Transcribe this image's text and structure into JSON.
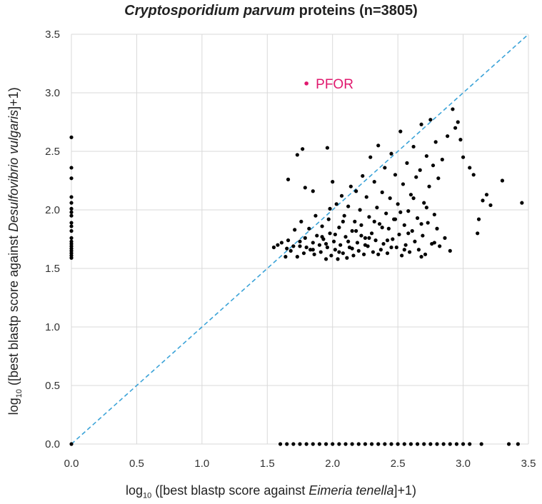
{
  "chart_data": {
    "type": "scatter",
    "title_italic": "Cryptosporidium parvum",
    "title_rest": " proteins (n=3805)",
    "xlabel_pre": "log",
    "xlabel_sub": "10",
    "xlabel_mid": " ([best blastp score against ",
    "xlabel_italic": "Eimeria tenella",
    "xlabel_post": "]+1)",
    "ylabel_pre": "log",
    "ylabel_sub": "10",
    "ylabel_mid": " ([best blastp score against ",
    "ylabel_italic": "Desulfovibrio vulgaris",
    "ylabel_post": "]+1)",
    "xlim": [
      0,
      3.5
    ],
    "ylim": [
      0,
      3.5
    ],
    "x_ticks": [
      "0.0",
      "0.5",
      "1.0",
      "1.5",
      "2.0",
      "2.5",
      "3.0",
      "3.5"
    ],
    "y_ticks": [
      "0.0",
      "0.5",
      "1.0",
      "1.5",
      "2.0",
      "2.5",
      "3.0",
      "3.5"
    ],
    "grid": true,
    "reference_line": {
      "name": "y = x",
      "x": [
        0,
        3.5
      ],
      "y": [
        0,
        3.5
      ],
      "color": "#3ba3d8",
      "style": "dashed"
    },
    "annotation": {
      "label": "PFOR",
      "x": 1.8,
      "y": 3.08,
      "color": "#e0186e"
    },
    "series": [
      {
        "name": "proteins",
        "color": "#000000",
        "points": [
          [
            0,
            0
          ],
          [
            0,
            2.62
          ],
          [
            0,
            2.36
          ],
          [
            0,
            2.27
          ],
          [
            0,
            2.11
          ],
          [
            0,
            2.06
          ],
          [
            0,
            2.01
          ],
          [
            0,
            1.98
          ],
          [
            0,
            1.95
          ],
          [
            0,
            1.89
          ],
          [
            0,
            1.86
          ],
          [
            0,
            1.82
          ],
          [
            0,
            1.76
          ],
          [
            0,
            1.73
          ],
          [
            0,
            1.71
          ],
          [
            0,
            1.69
          ],
          [
            0,
            1.67
          ],
          [
            0,
            1.65
          ],
          [
            0,
            1.63
          ],
          [
            0,
            1.61
          ],
          [
            0,
            1.59
          ],
          [
            1.73,
            2.47
          ],
          [
            1.77,
            2.52
          ],
          [
            1.66,
            2.26
          ],
          [
            1.96,
            2.53
          ],
          [
            1.79,
            2.19
          ],
          [
            1.85,
            2.16
          ],
          [
            1.98,
            2.01
          ],
          [
            1.55,
            1.68
          ],
          [
            1.61,
            1.72
          ],
          [
            1.64,
            1.6
          ],
          [
            1.66,
            1.74
          ],
          [
            1.68,
            1.65
          ],
          [
            1.7,
            1.69
          ],
          [
            1.71,
            1.83
          ],
          [
            1.73,
            1.6
          ],
          [
            1.75,
            1.73
          ],
          [
            1.76,
            1.9
          ],
          [
            1.78,
            1.63
          ],
          [
            1.79,
            1.76
          ],
          [
            1.8,
            1.68
          ],
          [
            1.82,
            1.84
          ],
          [
            1.83,
            1.66
          ],
          [
            1.85,
            1.72
          ],
          [
            1.86,
            1.62
          ],
          [
            1.87,
            1.95
          ],
          [
            1.88,
            1.78
          ],
          [
            1.9,
            1.7
          ],
          [
            1.91,
            1.64
          ],
          [
            1.92,
            1.86
          ],
          [
            1.93,
            1.75
          ],
          [
            1.95,
            1.58
          ],
          [
            1.96,
            1.68
          ],
          [
            1.97,
            1.92
          ],
          [
            1.98,
            1.8
          ],
          [
            1.99,
            1.61
          ],
          [
            2.0,
            2.24
          ],
          [
            2.01,
            1.73
          ],
          [
            2.02,
            1.66
          ],
          [
            2.03,
            2.05
          ],
          [
            2.04,
            1.58
          ],
          [
            2.05,
            1.85
          ],
          [
            2.06,
            1.7
          ],
          [
            2.07,
            2.12
          ],
          [
            2.08,
            1.63
          ],
          [
            2.09,
            1.95
          ],
          [
            2.1,
            1.77
          ],
          [
            2.11,
            1.59
          ],
          [
            2.12,
            2.03
          ],
          [
            2.13,
            1.68
          ],
          [
            2.14,
            2.2
          ],
          [
            2.15,
            1.82
          ],
          [
            2.16,
            1.61
          ],
          [
            2.17,
            1.9
          ],
          [
            2.18,
            2.16
          ],
          [
            2.19,
            1.72
          ],
          [
            2.2,
            1.65
          ],
          [
            2.21,
            2.0
          ],
          [
            2.22,
            1.87
          ],
          [
            2.23,
            2.29
          ],
          [
            2.24,
            1.62
          ],
          [
            2.25,
            1.76
          ],
          [
            2.26,
            2.11
          ],
          [
            2.27,
            1.69
          ],
          [
            2.28,
            1.94
          ],
          [
            2.29,
            2.45
          ],
          [
            2.3,
            1.8
          ],
          [
            2.31,
            1.64
          ],
          [
            2.32,
            2.24
          ],
          [
            2.33,
            1.74
          ],
          [
            2.34,
            2.02
          ],
          [
            2.35,
            2.55
          ],
          [
            2.36,
            1.88
          ],
          [
            2.37,
            1.66
          ],
          [
            2.38,
            2.15
          ],
          [
            2.39,
            1.71
          ],
          [
            2.4,
            2.36
          ],
          [
            2.41,
            1.97
          ],
          [
            2.42,
            1.63
          ],
          [
            2.43,
            1.84
          ],
          [
            2.44,
            2.1
          ],
          [
            2.45,
            2.48
          ],
          [
            2.46,
            1.75
          ],
          [
            2.47,
            1.92
          ],
          [
            2.48,
            2.3
          ],
          [
            2.49,
            1.68
          ],
          [
            2.5,
            2.05
          ],
          [
            2.51,
            1.79
          ],
          [
            2.52,
            2.67
          ],
          [
            2.53,
            1.61
          ],
          [
            2.54,
            2.22
          ],
          [
            2.55,
            1.87
          ],
          [
            2.56,
            1.7
          ],
          [
            2.57,
            2.4
          ],
          [
            2.58,
            1.99
          ],
          [
            2.59,
            1.64
          ],
          [
            2.6,
            2.13
          ],
          [
            2.61,
            1.82
          ],
          [
            2.62,
            2.54
          ],
          [
            2.63,
            1.73
          ],
          [
            2.64,
            2.28
          ],
          [
            2.65,
            1.93
          ],
          [
            2.66,
            1.66
          ],
          [
            2.67,
            2.34
          ],
          [
            2.68,
            2.73
          ],
          [
            2.69,
            1.78
          ],
          [
            2.7,
            2.06
          ],
          [
            2.71,
            1.62
          ],
          [
            2.72,
            2.46
          ],
          [
            2.73,
            1.89
          ],
          [
            2.74,
            2.2
          ],
          [
            2.75,
            2.77
          ],
          [
            2.76,
            1.71
          ],
          [
            2.77,
            2.38
          ],
          [
            2.78,
            1.96
          ],
          [
            2.79,
            2.58
          ],
          [
            2.8,
            1.84
          ],
          [
            2.81,
            2.27
          ],
          [
            2.82,
            1.69
          ],
          [
            2.84,
            2.43
          ],
          [
            2.86,
            1.76
          ],
          [
            2.88,
            2.63
          ],
          [
            2.92,
            2.86
          ],
          [
            2.94,
            2.7
          ],
          [
            2.96,
            2.75
          ],
          [
            2.98,
            2.6
          ],
          [
            3.0,
            2.45
          ],
          [
            3.05,
            2.36
          ],
          [
            3.08,
            2.3
          ],
          [
            3.12,
            1.92
          ],
          [
            3.11,
            1.8
          ],
          [
            3.15,
            2.08
          ],
          [
            3.18,
            2.13
          ],
          [
            3.21,
            2.04
          ],
          [
            3.3,
            2.25
          ],
          [
            3.45,
            2.06
          ],
          [
            2.9,
            1.65
          ],
          [
            2.78,
            1.72
          ],
          [
            2.68,
            1.6
          ],
          [
            2.55,
            1.66
          ],
          [
            2.45,
            1.68
          ],
          [
            2.35,
            1.62
          ],
          [
            2.25,
            1.7
          ],
          [
            2.15,
            1.67
          ],
          [
            2.05,
            1.64
          ],
          [
            1.95,
            1.71
          ],
          [
            1.85,
            1.66
          ],
          [
            1.75,
            1.69
          ],
          [
            1.65,
            1.67
          ],
          [
            1.58,
            1.7
          ],
          [
            2.08,
            1.9
          ],
          [
            2.18,
            1.82
          ],
          [
            2.28,
            1.76
          ],
          [
            2.38,
            1.85
          ],
          [
            2.48,
            1.92
          ],
          [
            2.58,
            1.8
          ],
          [
            2.68,
            1.88
          ],
          [
            2.72,
            2.02
          ],
          [
            2.62,
            2.1
          ],
          [
            2.52,
            1.98
          ],
          [
            2.42,
            1.74
          ],
          [
            2.32,
            1.9
          ],
          [
            2.22,
            1.78
          ],
          [
            2.12,
            1.73
          ],
          [
            2.02,
            1.79
          ],
          [
            1.92,
            1.77
          ],
          [
            1.6,
            0
          ],
          [
            1.65,
            0
          ],
          [
            1.7,
            0
          ],
          [
            1.75,
            0
          ],
          [
            1.8,
            0
          ],
          [
            1.85,
            0
          ],
          [
            1.9,
            0
          ],
          [
            1.95,
            0
          ],
          [
            2.0,
            0
          ],
          [
            2.05,
            0
          ],
          [
            2.1,
            0
          ],
          [
            2.15,
            0
          ],
          [
            2.2,
            0
          ],
          [
            2.25,
            0
          ],
          [
            2.3,
            0
          ],
          [
            2.35,
            0
          ],
          [
            2.4,
            0
          ],
          [
            2.45,
            0
          ],
          [
            2.5,
            0
          ],
          [
            2.55,
            0
          ],
          [
            2.6,
            0
          ],
          [
            2.65,
            0
          ],
          [
            2.7,
            0
          ],
          [
            2.75,
            0
          ],
          [
            2.8,
            0
          ],
          [
            2.85,
            0
          ],
          [
            2.9,
            0
          ],
          [
            2.95,
            0
          ],
          [
            3.0,
            0
          ],
          [
            3.05,
            0
          ],
          [
            3.14,
            0
          ],
          [
            3.35,
            0
          ],
          [
            3.42,
            0
          ]
        ]
      }
    ]
  }
}
